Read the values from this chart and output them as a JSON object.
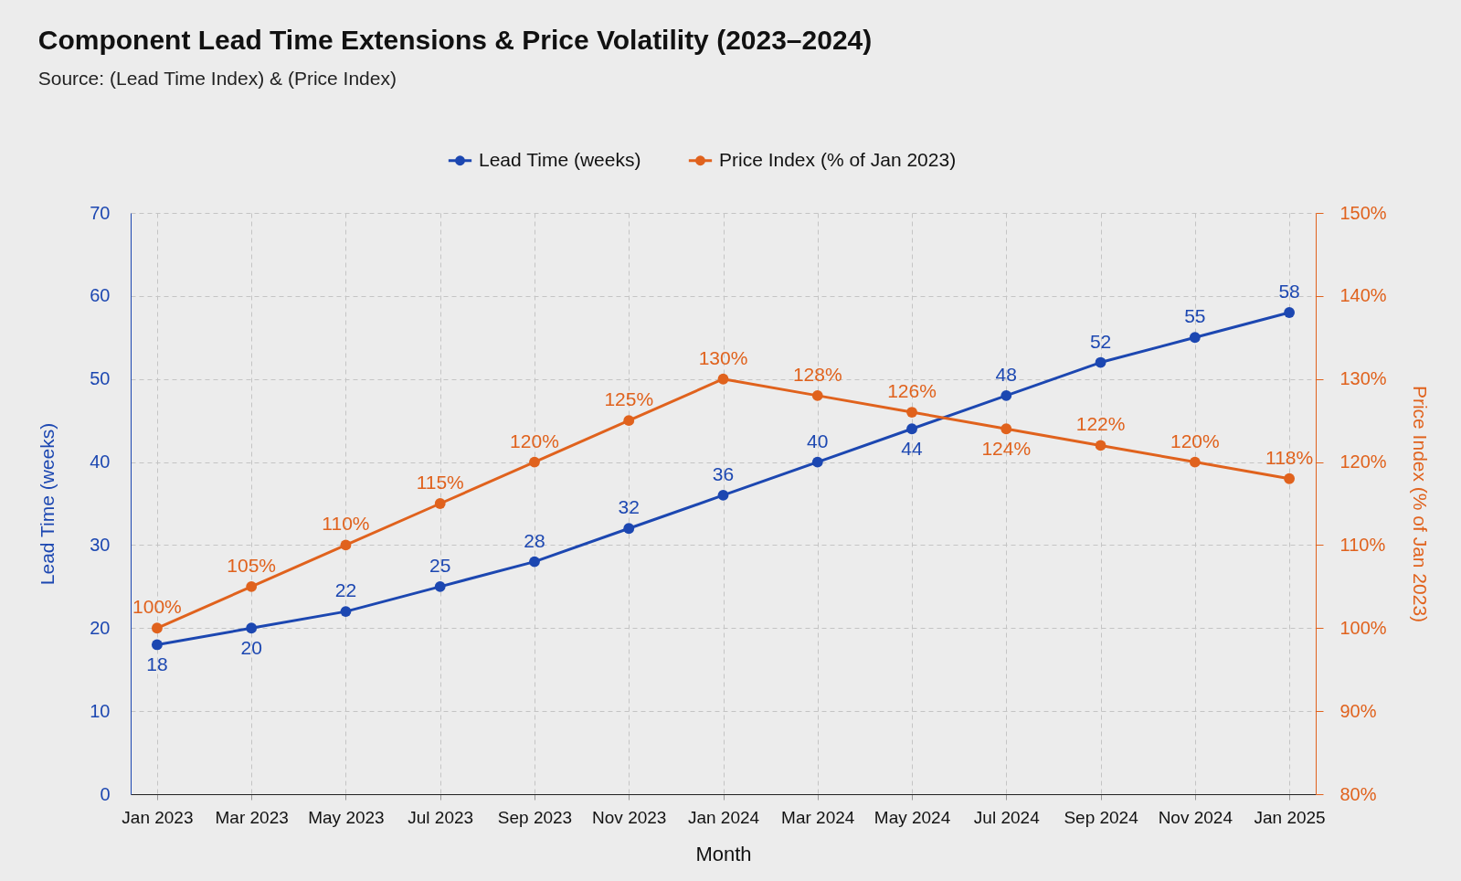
{
  "chart_data": {
    "type": "line",
    "title": "Component Lead Time Extensions & Price Volatility (2023–2024)",
    "annotations": [
      "Source: (Lead Time Index) & (Price Index)"
    ],
    "xlabel": "Month",
    "ylabel": "Lead Time (weeks)",
    "y2label": "Price Index (% of Jan 2023)",
    "categories": [
      "Jan 2023",
      "Mar 2023",
      "May 2023",
      "Jul 2023",
      "Sep 2023",
      "Nov 2023",
      "Jan 2024",
      "Mar 2024",
      "May 2024",
      "Jul 2024",
      "Sep 2024",
      "Nov 2024",
      "Jan 2025"
    ],
    "series": [
      {
        "name": "Lead Time (weeks)",
        "color": "#1c47b1",
        "values": [
          18,
          20,
          22,
          25,
          28,
          32,
          36,
          40,
          44,
          48,
          52,
          55,
          58
        ],
        "value_labels": [
          "18",
          "20",
          "22",
          "25",
          "28",
          "32",
          "36",
          "40",
          "44",
          "48",
          "52",
          "55",
          "58"
        ]
      },
      {
        "name": "Price Index (% of Jan 2023)",
        "color": "#e0621d",
        "axis": "y2",
        "values": [
          100,
          105,
          110,
          115,
          120,
          125,
          130,
          128,
          126,
          124,
          122,
          120,
          118
        ],
        "value_labels": [
          "100%",
          "105%",
          "110%",
          "115%",
          "120%",
          "125%",
          "130%",
          "128%",
          "126%",
          "124%",
          "122%",
          "120%",
          "118%"
        ]
      }
    ],
    "ylim": [
      0,
      70
    ],
    "yticks": [
      0,
      10,
      20,
      30,
      40,
      50,
      60,
      70
    ],
    "y2lim": [
      80,
      150
    ],
    "y2ticks": [
      {
        "value": 80,
        "label": "80%"
      },
      {
        "value": 90,
        "label": "90%"
      },
      {
        "value": 100,
        "label": "100%"
      },
      {
        "value": 110,
        "label": "110%"
      },
      {
        "value": 120,
        "label": "120%"
      },
      {
        "value": 130,
        "label": "130%"
      },
      {
        "value": 140,
        "label": "140%"
      },
      {
        "value": 150,
        "label": "150%"
      }
    ],
    "grid": true,
    "legend": "top",
    "marker": "circle",
    "line_style": "solid"
  }
}
